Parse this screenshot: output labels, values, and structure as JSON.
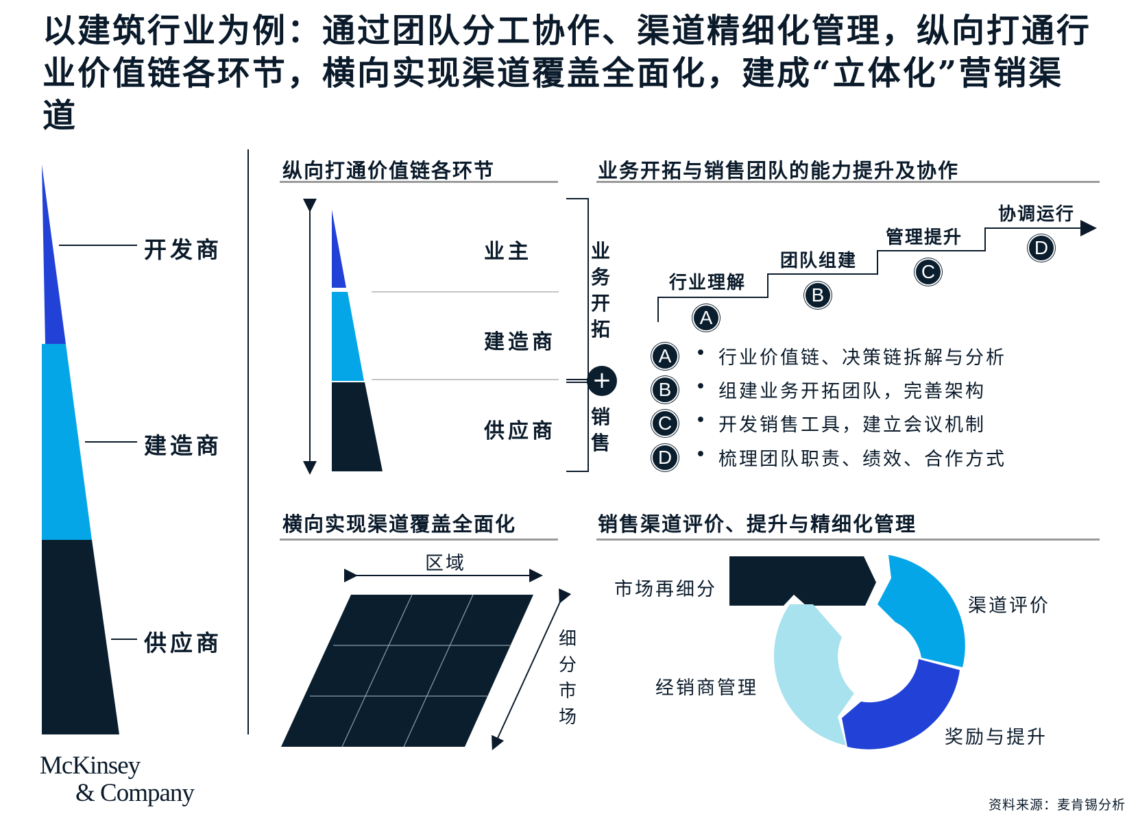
{
  "title": "以建筑行业为例：通过团队分工协作、渠道精细化管理，纵向打通行业价值链各环节，横向实现渠道覆盖全面化，建成“立体化”营销渠道",
  "left_pyramid": {
    "labels": [
      "开发商",
      "建造商",
      "供应商"
    ],
    "colors": [
      "#2241d6",
      "#05a6e8",
      "#0b1e2d"
    ]
  },
  "vertical_section": {
    "heading": "纵向打通价值链各环节",
    "labels": [
      "业主",
      "建造商",
      "供应商"
    ],
    "bracket_top": "业务开拓",
    "plus_symbol": "+",
    "bracket_bottom": "销售"
  },
  "team_section": {
    "heading": "业务开拓与销售团队的能力提升及协作",
    "steps": [
      {
        "label": "行业理解",
        "badge": "A"
      },
      {
        "label": "团队组建",
        "badge": "B"
      },
      {
        "label": "管理提升",
        "badge": "C"
      },
      {
        "label": "协调运行",
        "badge": "D"
      }
    ],
    "items": [
      {
        "badge": "A",
        "text": "行业价值链、决策链拆解与分析"
      },
      {
        "badge": "B",
        "text": "组建业务开拓团队，完善架构"
      },
      {
        "badge": "C",
        "text": "开发销售工具，建立会议机制"
      },
      {
        "badge": "D",
        "text": "梳理团队职责、绩效、合作方式"
      }
    ],
    "bullet": "•"
  },
  "horizontal_section": {
    "heading": "横向实现渠道覆盖全面化",
    "x_label": "区域",
    "y_label": "细分市场"
  },
  "channel_section": {
    "heading": "销售渠道评价、提升与精细化管理",
    "segments": [
      "市场再细分",
      "渠道评价",
      "奖励与提升",
      "经销商管理"
    ],
    "colors": [
      "#0b1e2d",
      "#05a6e8",
      "#2241d6",
      "#a8e2ef"
    ]
  },
  "logo": {
    "line1": "McKinsey",
    "line2": "& Company"
  },
  "source": "资料来源：麦肯锡分析"
}
